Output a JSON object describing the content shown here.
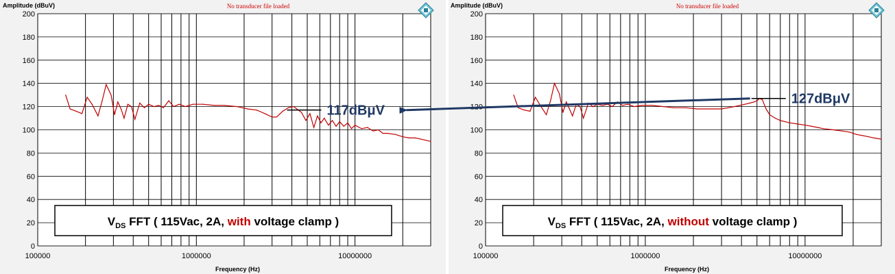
{
  "colors": {
    "trace": "#c00000",
    "arrow": "#1f3864",
    "highlight": "#c00000"
  },
  "icons": [
    "rs-logo-icon"
  ],
  "chart_data": [
    {
      "type": "line",
      "xscale": "log",
      "xlim": [
        100000,
        30000000
      ],
      "ylim": [
        0,
        200
      ],
      "xticks": [
        "100000",
        "1000000",
        "10000000"
      ],
      "yticks": [
        "0",
        "20",
        "40",
        "60",
        "80",
        "100",
        "120",
        "140",
        "160",
        "180",
        "200"
      ],
      "ylabel": "Amplitude (dBuV)",
      "xlabel": "Frequency (Hz)",
      "transducer": "No transducer file loaded",
      "grid": true,
      "caption": {
        "v": "V",
        "sub": "DS",
        "pre": " FFT ( 115Vac, 2A, ",
        "highlight": "with",
        "post": " voltage clamp )"
      },
      "annotation": {
        "label": "117dBμV",
        "x": 4200000,
        "y": 117
      },
      "series": [
        {
          "x": [
            150000,
            160000,
            175000,
            190000,
            205000,
            220000,
            240000,
            255000,
            270000,
            290000,
            305000,
            320000,
            335000,
            350000,
            370000,
            390000,
            410000,
            440000,
            470000,
            500000,
            540000,
            580000,
            620000,
            670000,
            720000,
            780000,
            850000,
            950000,
            1100000,
            1300000,
            1500000,
            1800000,
            2100000,
            2400000,
            2700000,
            3000000,
            3200000,
            3500000,
            3800000,
            4100000,
            4300000,
            4600000,
            4900000,
            5200000,
            5500000,
            5800000,
            6100000,
            6400000,
            6800000,
            7200000,
            7600000,
            8000000,
            8500000,
            9000000,
            9500000,
            10000000,
            11000000,
            12000000,
            13000000,
            14000000,
            15000000,
            16000000,
            18000000,
            20000000,
            22000000,
            24000000,
            26000000,
            28000000,
            30000000
          ],
          "y": [
            130,
            118,
            116,
            114,
            128,
            122,
            112,
            125,
            139,
            130,
            113,
            124,
            118,
            110,
            122,
            120,
            109,
            123,
            119,
            122,
            120,
            121,
            119,
            125,
            120,
            122,
            120,
            122,
            122,
            121,
            121,
            120,
            118,
            117,
            114,
            111,
            111,
            116,
            119,
            120,
            118,
            115,
            108,
            114,
            102,
            112,
            106,
            110,
            104,
            108,
            103,
            107,
            103,
            106,
            101,
            104,
            101,
            102,
            99,
            100,
            97,
            97,
            96,
            94,
            93,
            93,
            92,
            91,
            90
          ]
        }
      ]
    },
    {
      "type": "line",
      "xscale": "log",
      "xlim": [
        100000,
        30000000
      ],
      "ylim": [
        0,
        200
      ],
      "xticks": [
        "100000",
        "1000000",
        "10000000"
      ],
      "yticks": [
        "0",
        "20",
        "40",
        "60",
        "80",
        "100",
        "120",
        "140",
        "160",
        "180",
        "200"
      ],
      "ylabel": "Amplitude (dBuV)",
      "xlabel": "Frequency (Hz)",
      "transducer": "No transducer file loaded",
      "grid": true,
      "caption": {
        "v": "V",
        "sub": "DS",
        "pre": " FFT ( 115Vac, 2A, ",
        "highlight": "without",
        "post": " voltage clamp )"
      },
      "annotation": {
        "label": "127dBμV",
        "x": 5200000,
        "y": 127
      },
      "series": [
        {
          "x": [
            150000,
            160000,
            175000,
            190000,
            205000,
            220000,
            240000,
            255000,
            270000,
            290000,
            305000,
            320000,
            335000,
            350000,
            370000,
            390000,
            410000,
            440000,
            470000,
            500000,
            540000,
            580000,
            620000,
            670000,
            720000,
            780000,
            850000,
            950000,
            1100000,
            1300000,
            1500000,
            1800000,
            2100000,
            2400000,
            2700000,
            3000000,
            3300000,
            3600000,
            3900000,
            4200000,
            4500000,
            4800000,
            5000000,
            5200000,
            5400000,
            5700000,
            6000000,
            6500000,
            7000000,
            7500000,
            8000000,
            9000000,
            10000000,
            11000000,
            12000000,
            13000000,
            15000000,
            17000000,
            19000000,
            21000000,
            23000000,
            25000000,
            27000000,
            30000000
          ],
          "y": [
            130,
            119,
            117,
            116,
            128,
            121,
            113,
            125,
            140,
            131,
            115,
            124,
            118,
            112,
            122,
            120,
            110,
            123,
            120,
            122,
            121,
            122,
            120,
            124,
            121,
            122,
            120,
            121,
            121,
            120,
            119,
            119,
            118,
            118,
            118,
            118,
            119,
            120,
            121,
            122,
            123,
            124,
            125,
            127,
            126,
            118,
            113,
            110,
            108,
            107,
            106,
            105,
            104,
            103,
            102,
            101,
            100,
            99,
            98,
            96,
            95,
            94,
            93,
            92
          ]
        }
      ]
    }
  ]
}
